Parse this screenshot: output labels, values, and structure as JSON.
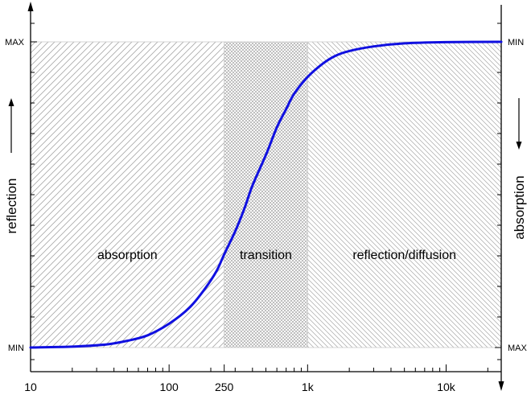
{
  "chart_data": {
    "type": "line",
    "x_scale": "log",
    "xlim": [
      10,
      25000
    ],
    "x_ticks": [
      {
        "value": 10,
        "label": "10"
      },
      {
        "value": 100,
        "label": "100"
      },
      {
        "value": 250,
        "label": "250"
      },
      {
        "value": 1000,
        "label": "1k"
      },
      {
        "value": 10000,
        "label": "10k"
      }
    ],
    "ylabel": "reflection",
    "ylabel_right": "absorption",
    "y_left_labels": {
      "top": "MAX",
      "bottom": "MIN"
    },
    "y_right_labels": {
      "top": "MIN",
      "bottom": "MAX"
    },
    "regions": [
      {
        "label": "absorption",
        "x_start": 10,
        "x_end": 250,
        "pattern": "diagonal"
      },
      {
        "label": "transition",
        "x_start": 250,
        "x_end": 1000,
        "pattern": "crosshatch"
      },
      {
        "label": "reflection/diffusion",
        "x_start": 1000,
        "x_end": 25000,
        "pattern": "diagonal-reverse"
      }
    ],
    "series": [
      {
        "color": "#1010e0",
        "points": [
          [
            10,
            0.0
          ],
          [
            20,
            0.003
          ],
          [
            35,
            0.01
          ],
          [
            50,
            0.022
          ],
          [
            70,
            0.04
          ],
          [
            100,
            0.078
          ],
          [
            140,
            0.13
          ],
          [
            180,
            0.19
          ],
          [
            220,
            0.25
          ],
          [
            250,
            0.305
          ],
          [
            300,
            0.38
          ],
          [
            350,
            0.455
          ],
          [
            400,
            0.53
          ],
          [
            500,
            0.63
          ],
          [
            600,
            0.72
          ],
          [
            700,
            0.78
          ],
          [
            800,
            0.83
          ],
          [
            1000,
            0.885
          ],
          [
            1300,
            0.93
          ],
          [
            1600,
            0.955
          ],
          [
            2000,
            0.97
          ],
          [
            3000,
            0.985
          ],
          [
            5000,
            0.995
          ],
          [
            10000,
            0.999
          ],
          [
            25000,
            1.0
          ]
        ]
      }
    ],
    "grid": false,
    "legend": "none"
  },
  "colors": {
    "curve": "#1010e0",
    "hatch": "#9a9a9a",
    "axis": "#000000"
  }
}
